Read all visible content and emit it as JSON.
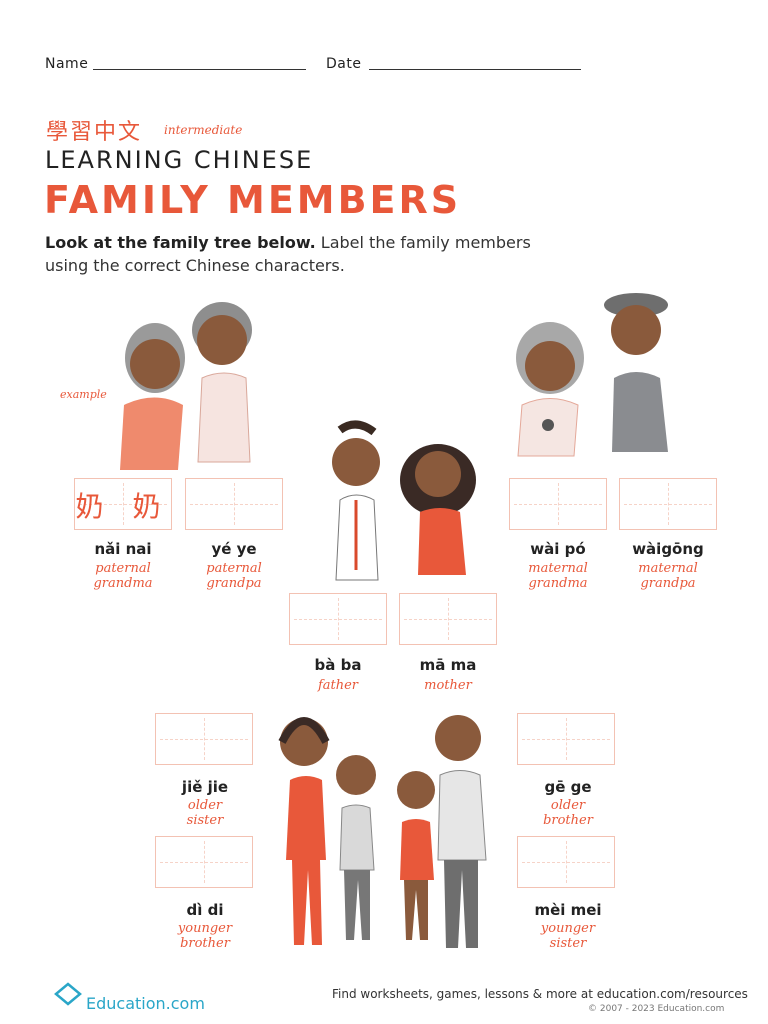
{
  "header": {
    "name_label": "Name",
    "date_label": "Date",
    "chinese_title": "學習中文",
    "level": "intermediate",
    "subtitle": "LEARNING CHINESE",
    "title": "FAMILY MEMBERS",
    "instruction_bold": "Look at the family tree below.",
    "instruction_rest": "Label the family members using the correct Chinese characters."
  },
  "example_tag": "example",
  "members": [
    {
      "id": "nainai",
      "pinyin": "nǎi nai",
      "english": [
        "paternal",
        "grandma"
      ],
      "answer": "奶 奶",
      "is_example": true
    },
    {
      "id": "yeye",
      "pinyin": "yé ye",
      "english": [
        "paternal",
        "grandpa"
      ],
      "answer": ""
    },
    {
      "id": "waipo",
      "pinyin": "wài pó",
      "english": [
        "maternal",
        "grandma"
      ],
      "answer": ""
    },
    {
      "id": "waigong",
      "pinyin": "wàigōng",
      "english": [
        "maternal",
        "grandpa"
      ],
      "answer": ""
    },
    {
      "id": "baba",
      "pinyin": "bà ba",
      "english": [
        "father"
      ],
      "answer": ""
    },
    {
      "id": "mama",
      "pinyin": "mā ma",
      "english": [
        "mother"
      ],
      "answer": ""
    },
    {
      "id": "jiejie",
      "pinyin": "jiě jie",
      "english": [
        "older",
        "sister"
      ],
      "answer": ""
    },
    {
      "id": "gege",
      "pinyin": "gē ge",
      "english": [
        "older",
        "brother"
      ],
      "answer": ""
    },
    {
      "id": "didi",
      "pinyin": "dì di",
      "english": [
        "younger",
        "brother"
      ],
      "answer": ""
    },
    {
      "id": "meimei",
      "pinyin": "mèi mei",
      "english": [
        "younger",
        "sister"
      ],
      "answer": ""
    }
  ],
  "footer": {
    "logo": "Education.com",
    "message": "Find worksheets, games, lessons & more at education.com/resources",
    "copyright": "© 2007 - 2023 Education.com"
  },
  "colors": {
    "accent": "#e8583a",
    "box_border": "#f3c2b3",
    "logo": "#2aa6c8"
  }
}
